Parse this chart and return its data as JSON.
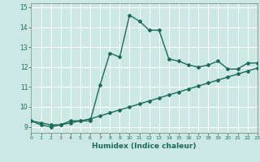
{
  "title": "",
  "xlabel": "Humidex (Indice chaleur)",
  "ylabel": "",
  "bg_color": "#cce8e4",
  "grid_color": "#ffffff",
  "line_color": "#1a6b5a",
  "xlim": [
    0,
    23
  ],
  "ylim": [
    8.7,
    15.2
  ],
  "xticks": [
    0,
    1,
    2,
    3,
    4,
    5,
    6,
    7,
    8,
    9,
    10,
    11,
    12,
    13,
    14,
    15,
    16,
    17,
    18,
    19,
    20,
    21,
    22,
    23
  ],
  "yticks": [
    9,
    10,
    11,
    12,
    13,
    14,
    15
  ],
  "curve1_x": [
    0,
    1,
    2,
    3,
    4,
    5,
    6,
    7,
    8,
    9,
    10,
    11,
    12,
    13,
    14,
    15,
    16,
    17,
    18,
    19,
    20,
    21,
    22,
    23
  ],
  "curve1_y": [
    9.3,
    9.1,
    9.0,
    9.1,
    9.3,
    9.3,
    9.3,
    11.1,
    12.7,
    12.5,
    14.6,
    14.3,
    13.85,
    13.85,
    12.4,
    12.3,
    12.1,
    12.0,
    12.1,
    12.3,
    11.9,
    11.9,
    12.2,
    12.2
  ],
  "curve2_x": [
    0,
    1,
    2,
    3,
    4,
    5,
    6,
    7,
    8,
    9,
    10,
    11,
    12,
    13,
    14,
    15,
    16,
    17,
    18,
    19,
    20,
    21,
    22,
    23
  ],
  "curve2_y": [
    9.3,
    9.2,
    9.1,
    9.1,
    9.2,
    9.3,
    9.4,
    9.55,
    9.7,
    9.85,
    10.0,
    10.15,
    10.3,
    10.45,
    10.6,
    10.75,
    10.9,
    11.05,
    11.2,
    11.35,
    11.5,
    11.65,
    11.8,
    11.95
  ],
  "marker": "D",
  "markersize": 2.0,
  "linewidth": 1.0
}
